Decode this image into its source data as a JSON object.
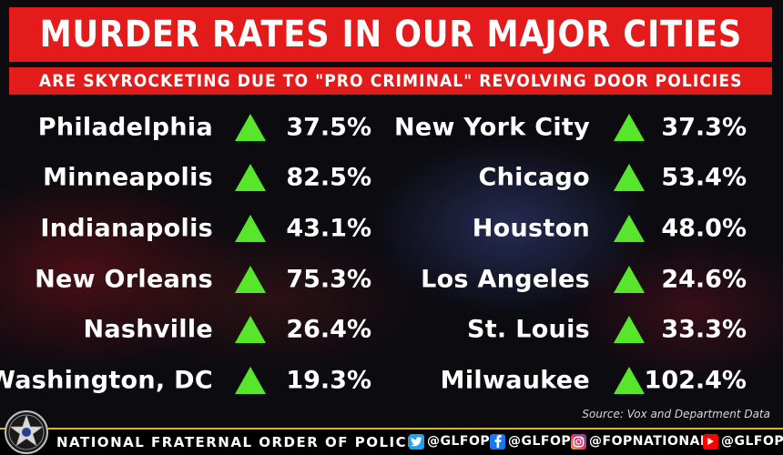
{
  "title": "MURDER RATES IN OUR MAJOR CITIES",
  "subtitle": "ARE SKYROCKETING DUE TO \"PRO CRIMINAL\" REVOLVING DOOR POLICIES",
  "colors": {
    "banner_red": "#e31b1b",
    "arrow_green": "#57e62b",
    "footer_gold": "#d9b23a"
  },
  "arrow_icon": "up-triangle",
  "left_column": [
    {
      "city": "Philadelphia",
      "change": "37.5%"
    },
    {
      "city": "Minneapolis",
      "change": "82.5%"
    },
    {
      "city": "Indianapolis",
      "change": "43.1%"
    },
    {
      "city": "New Orleans",
      "change": "75.3%"
    },
    {
      "city": "Nashville",
      "change": "26.4%"
    },
    {
      "city": "Washington, DC",
      "change": "19.3%"
    }
  ],
  "right_column": [
    {
      "city": "New York City",
      "change": "37.3%"
    },
    {
      "city": "Chicago",
      "change": "53.4%"
    },
    {
      "city": "Houston",
      "change": "48.0%"
    },
    {
      "city": "Los Angeles",
      "change": "24.6%"
    },
    {
      "city": "St. Louis",
      "change": "33.3%"
    },
    {
      "city": "Milwaukee",
      "change": "102.4%"
    }
  ],
  "source": "Source: Vox and Department Data",
  "footer": {
    "organization": "NATIONAL FRATERNAL ORDER OF POLICE",
    "badge_icon": "fop-star-badge",
    "social": [
      {
        "icon": "twitter-icon",
        "handle": "@GLFOP"
      },
      {
        "icon": "facebook-icon",
        "handle": "@GLFOP"
      },
      {
        "icon": "instagram-icon",
        "handle": "@FOPNATIONAL"
      },
      {
        "icon": "youtube-icon",
        "handle": "@GLFOP"
      }
    ]
  }
}
